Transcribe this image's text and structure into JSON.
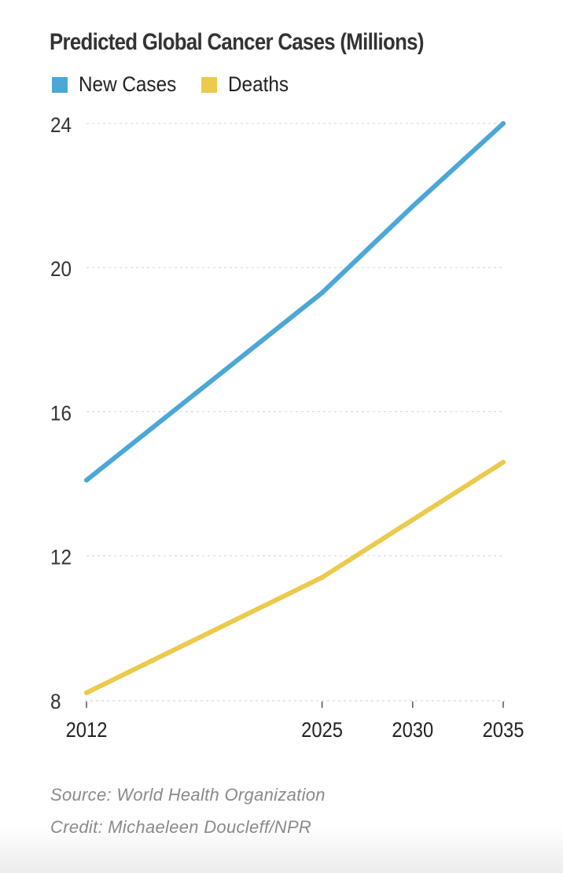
{
  "chart_data": {
    "type": "line",
    "title": "Predicted Global Cancer Cases (Millions)",
    "xlabel": "",
    "ylabel": "",
    "categories": [
      "2012",
      "2025",
      "2030",
      "2035"
    ],
    "x": [
      2012,
      2025,
      2030,
      2035
    ],
    "xlim": [
      2012,
      2035
    ],
    "ylim": [
      8,
      24
    ],
    "yticks": [
      "8",
      "12",
      "16",
      "20",
      "24"
    ],
    "grid": true,
    "legend_position": "top-left",
    "series": [
      {
        "name": "New Cases",
        "color": "#4ba7d7",
        "values": [
          14.1,
          19.3,
          21.7,
          24.0
        ]
      },
      {
        "name": "Deaths",
        "color": "#ebca4c",
        "values": [
          8.2,
          11.4,
          13.0,
          14.6
        ]
      }
    ]
  },
  "footer": {
    "source": "Source: World Health Organization",
    "credit": "Credit: Michaeleen Doucleff/NPR"
  }
}
